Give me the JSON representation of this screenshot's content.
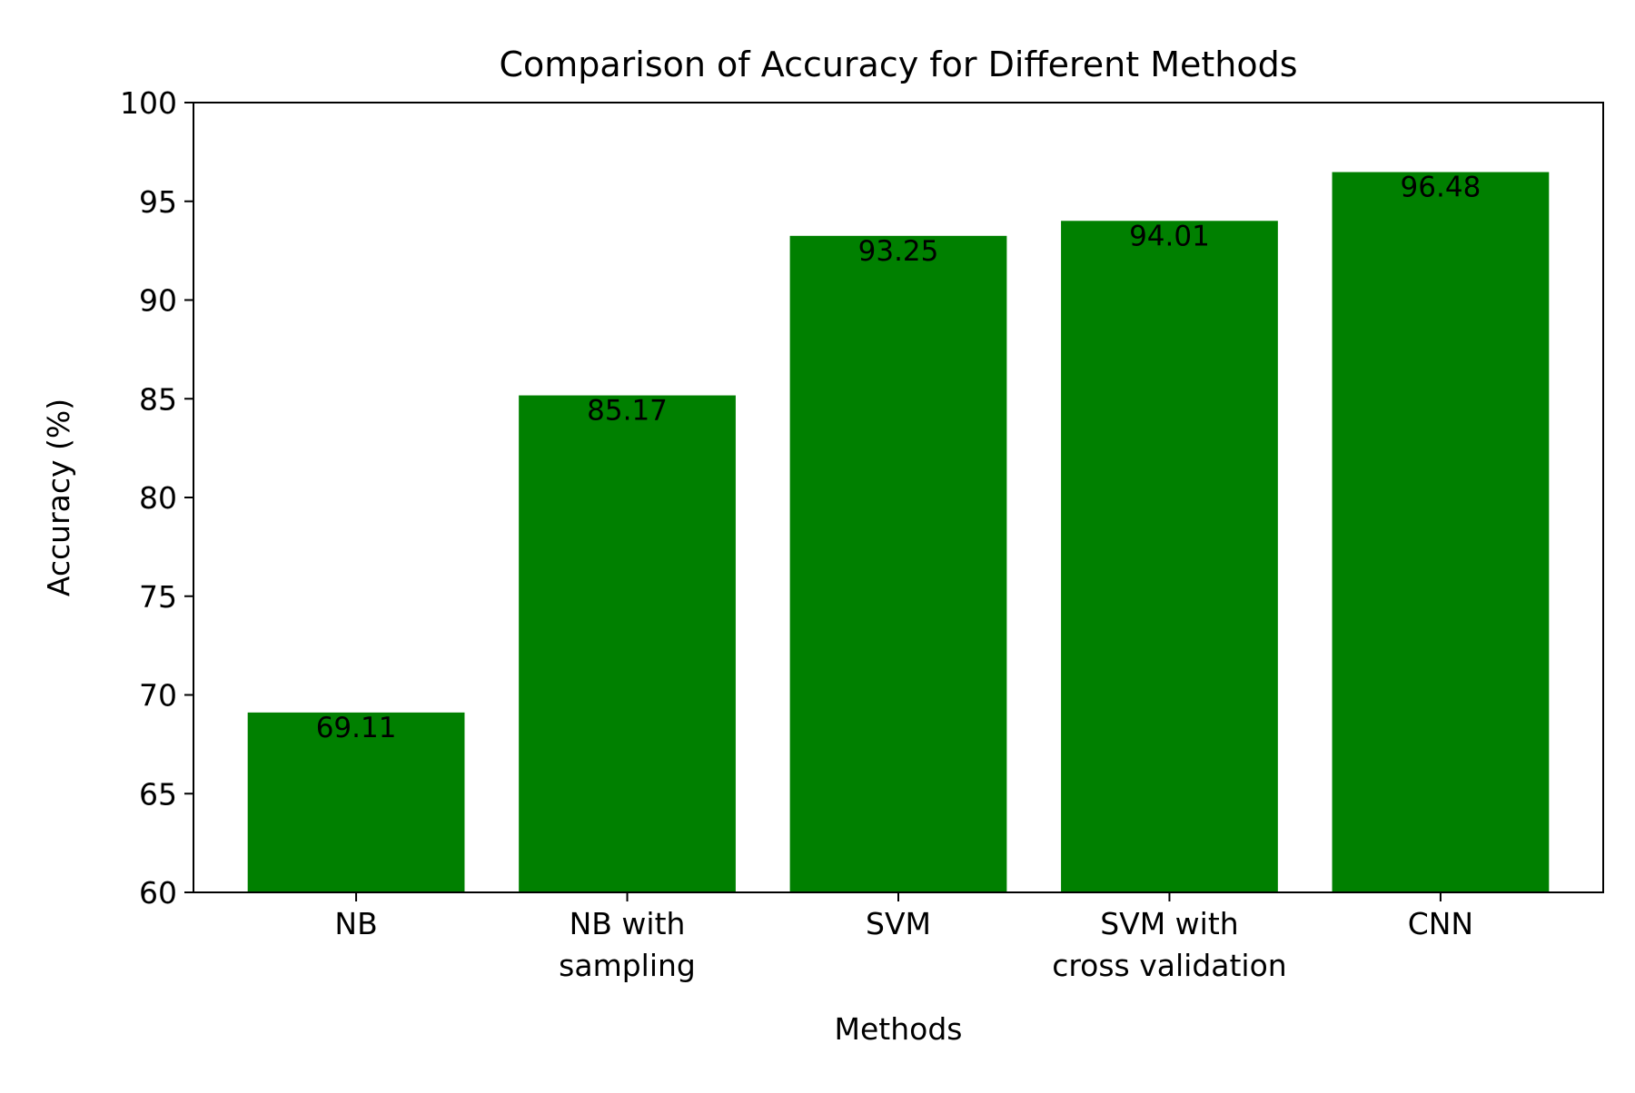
{
  "chart_data": {
    "type": "bar",
    "title": "Comparison of Accuracy for Different Methods",
    "xlabel": "Methods",
    "ylabel": "Accuracy (%)",
    "categories": [
      [
        "NB"
      ],
      [
        "NB with",
        "sampling"
      ],
      [
        "SVM"
      ],
      [
        "SVM with",
        "cross validation"
      ],
      [
        "CNN"
      ]
    ],
    "values": [
      69.11,
      85.17,
      93.25,
      94.01,
      96.48
    ],
    "value_labels": [
      "69.11",
      "85.17",
      "93.25",
      "94.01",
      "96.48"
    ],
    "ylim": [
      60,
      100
    ],
    "yticks": [
      60,
      65,
      70,
      75,
      80,
      85,
      90,
      95,
      100
    ],
    "bar_color": "#008000",
    "grid": false,
    "legend": "none"
  }
}
